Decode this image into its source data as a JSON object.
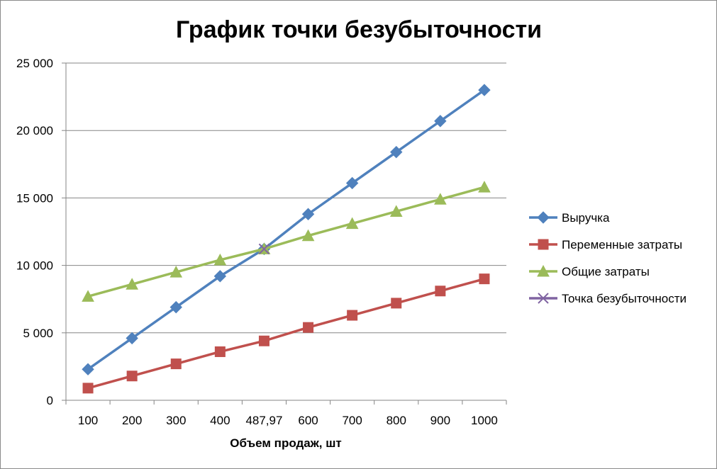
{
  "chart_data": {
    "type": "line",
    "title": "График точки безубыточности",
    "xlabel": "Объем продаж, шт",
    "ylabel": "",
    "categories": [
      "100",
      "200",
      "300",
      "400",
      "487,97",
      "600",
      "700",
      "800",
      "900",
      "1000"
    ],
    "ylim": [
      0,
      25000
    ],
    "yticks": [
      0,
      5000,
      10000,
      15000,
      20000,
      25000
    ],
    "ytick_labels": [
      "0",
      "5 000",
      "10 000",
      "15 000",
      "20 000",
      "25 000"
    ],
    "grid": true,
    "legend_position": "right",
    "series": [
      {
        "name": "Выручка",
        "color": "#4f81bd",
        "marker": "diamond",
        "values": [
          2300,
          4600,
          6900,
          9200,
          11220,
          13800,
          16100,
          18400,
          20700,
          23000
        ]
      },
      {
        "name": "Переменные затраты",
        "color": "#c0504d",
        "marker": "square",
        "values": [
          900,
          1800,
          2700,
          3600,
          4400,
          5400,
          6300,
          7200,
          8100,
          9000
        ]
      },
      {
        "name": "Общие затраты",
        "color": "#9bbb59",
        "marker": "triangle",
        "values": [
          7700,
          8600,
          9500,
          10400,
          11220,
          12200,
          13100,
          14000,
          14900,
          15800
        ]
      },
      {
        "name": "Точка безубыточности",
        "color": "#8064a2",
        "marker": "x",
        "values": [
          null,
          null,
          null,
          null,
          11220,
          null,
          null,
          null,
          null,
          null
        ]
      }
    ]
  }
}
